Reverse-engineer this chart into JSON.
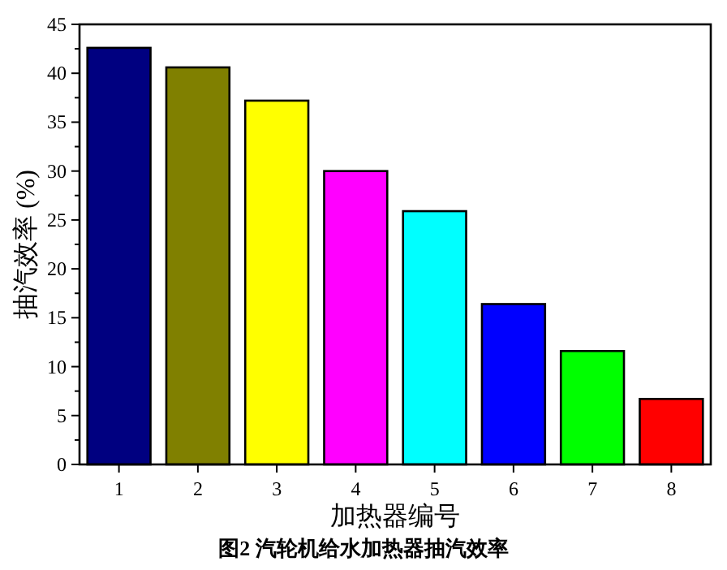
{
  "chart_data": {
    "type": "bar",
    "title": "图2 汽轮机给水加热器抽汽效率",
    "xlabel": "加热器编号",
    "ylabel": "抽汽效率 (%)",
    "categories": [
      "1",
      "2",
      "3",
      "4",
      "5",
      "6",
      "7",
      "8"
    ],
    "values": [
      42.6,
      40.6,
      37.2,
      30.0,
      25.9,
      16.4,
      11.6,
      6.7
    ],
    "colors": [
      "#000080",
      "#808000",
      "#ffff00",
      "#ff00ff",
      "#00ffff",
      "#0000ff",
      "#00ff00",
      "#ff0000"
    ],
    "ylim": [
      0,
      45
    ],
    "yticks": [
      0,
      {
        "value": 2.5,
        "label": null
      },
      5,
      {
        "value": 7.5,
        "label": null
      },
      10,
      {
        "value": 12.5,
        "label": null
      },
      15,
      {
        "value": 17.5,
        "label": null
      },
      20,
      {
        "value": 22.5,
        "label": null
      },
      25,
      {
        "value": 27.5,
        "label": null
      },
      30,
      {
        "value": 32.5,
        "label": null
      },
      35,
      {
        "value": 37.5,
        "label": null
      },
      40,
      {
        "value": 42.5,
        "label": null
      },
      45
    ],
    "grid": false
  }
}
